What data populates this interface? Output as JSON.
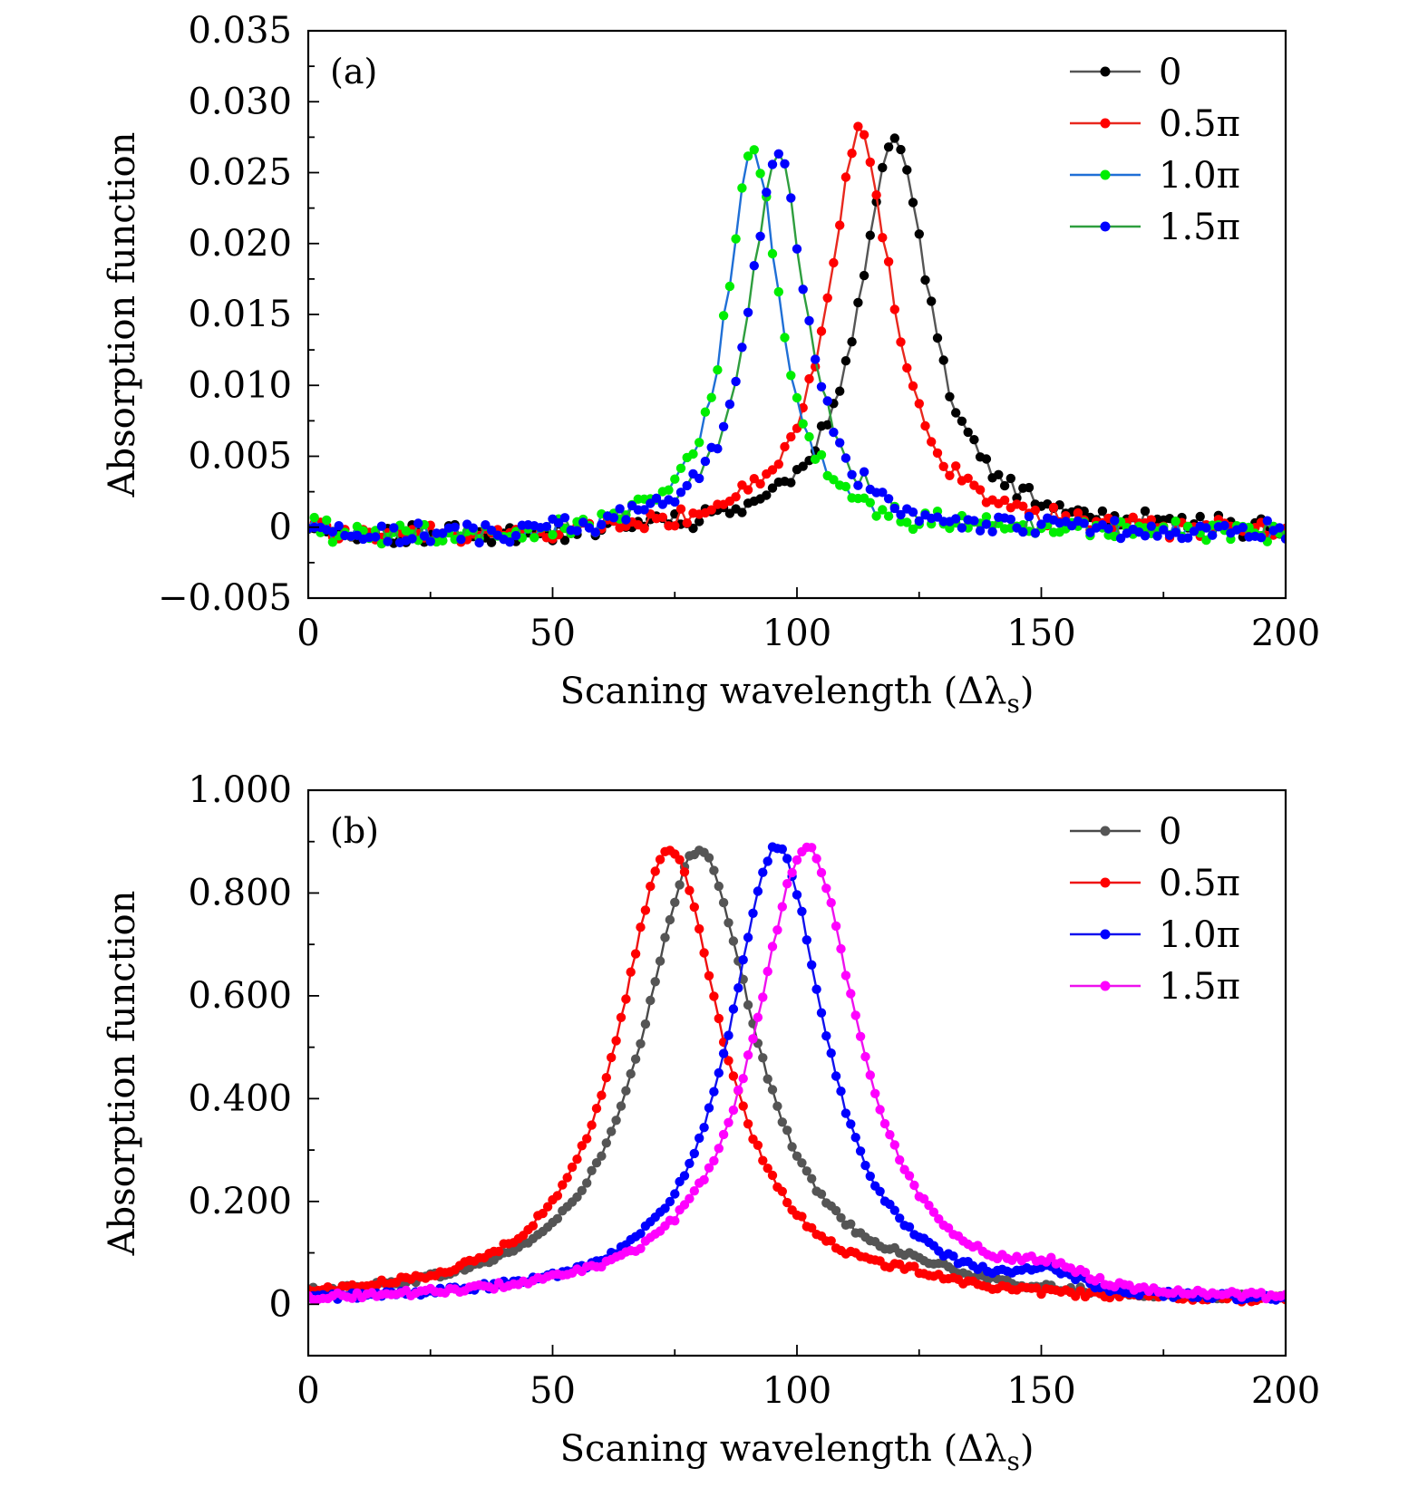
{
  "chart_data": [
    {
      "type": "line",
      "panel_label": "(a)",
      "xlabel": "Scaning wavelength (Δλ",
      "xlabel_sub": "s",
      "xlabel_close": ")",
      "ylabel": "Absorption function",
      "xlim": [
        0,
        200
      ],
      "ylim": [
        -0.005,
        0.035
      ],
      "xticks": [
        0,
        50,
        100,
        150,
        200
      ],
      "xtick_labels": [
        "0",
        "50",
        "100",
        "150",
        "200"
      ],
      "yticks": [
        -0.005,
        0,
        0.005,
        0.01,
        0.015,
        0.02,
        0.025,
        0.03,
        0.035
      ],
      "ytick_labels": [
        "−0.005",
        "0",
        "0.005",
        "0.010",
        "0.015",
        "0.020",
        "0.025",
        "0.030",
        "0.035"
      ],
      "grid": false,
      "legend_position": "top-right",
      "series": [
        {
          "name": "0",
          "line_color": "#555555",
          "marker_color": "#000000",
          "peak_x": 120,
          "peak_y": 0.0282,
          "width": 8.5
        },
        {
          "name": "0.5π",
          "line_color": "#e8281e",
          "marker_color": "#ff0000",
          "peak_x": 113,
          "peak_y": 0.0282,
          "width": 8.0
        },
        {
          "name": "1.0π",
          "line_color": "#1f6fd6",
          "marker_color": "#00ee00",
          "peak_x": 91,
          "peak_y": 0.0272,
          "width": 6.5
        },
        {
          "name": "1.5π",
          "line_color": "#2e9e3e",
          "marker_color": "#0000ff",
          "peak_x": 96,
          "peak_y": 0.027,
          "width": 7.0
        }
      ]
    },
    {
      "type": "line",
      "panel_label": "(b)",
      "xlabel": "Scaning wavelength (Δλ",
      "xlabel_sub": "s",
      "xlabel_close": ")",
      "ylabel": "Absorption function",
      "xlim": [
        0,
        200
      ],
      "ylim": [
        -0.1,
        1.0
      ],
      "xticks": [
        0,
        50,
        100,
        150,
        200
      ],
      "xtick_labels": [
        "0",
        "50",
        "100",
        "150",
        "200"
      ],
      "yticks": [
        0,
        0.2,
        0.4,
        0.6,
        0.8,
        1.0
      ],
      "ytick_labels": [
        "0",
        "0.200",
        "0.400",
        "0.600",
        "0.800",
        "1.000"
      ],
      "grid": false,
      "legend_position": "top-right",
      "series": [
        {
          "name": "0",
          "line_color": "#4a4a4a",
          "marker_color": "#555555",
          "peak_x": 80,
          "peak_y": 0.885,
          "width": 14
        },
        {
          "name": "0.5π",
          "line_color": "#ee1111",
          "marker_color": "#ff0000",
          "peak_x": 74,
          "peak_y": 0.885,
          "width": 13
        },
        {
          "name": "1.0π",
          "line_color": "#1111ee",
          "marker_color": "#0000ff",
          "peak_x": 96,
          "peak_y": 0.89,
          "width": 12
        },
        {
          "name": "1.5π",
          "line_color": "#ee11ee",
          "marker_color": "#ff00ff",
          "peak_x": 102,
          "peak_y": 0.89,
          "width": 13
        }
      ]
    }
  ]
}
